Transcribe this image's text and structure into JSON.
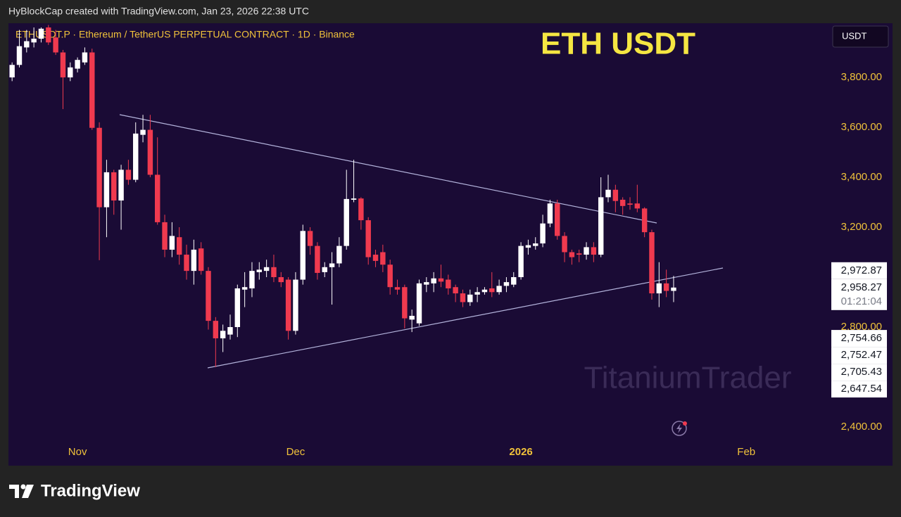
{
  "header": "HyBlockCap created with TradingView.com, Jan 23, 2026 22:38 UTC",
  "watermark": "TitaniumTrader",
  "currency_button": "USDT",
  "footer_brand": "TradingView",
  "chart_data": {
    "type": "candlestick",
    "title": "ETH USDT",
    "subtitle": "ETHUSDT.P · Ethereum / TetherUS PERPETUAL CONTRACT · 1D · Binance",
    "up_color": "#ffffff",
    "down_color": "#f03a4f",
    "categories": [
      null,
      null,
      null,
      null,
      null,
      null,
      null,
      null,
      null,
      "Nov",
      null,
      null,
      null,
      null,
      null,
      null,
      null,
      null,
      null,
      null,
      null,
      null,
      null,
      null,
      null,
      null,
      null,
      null,
      null,
      null,
      null,
      null,
      null,
      null,
      null,
      null,
      null,
      null,
      null,
      "Dec",
      null,
      null,
      null,
      null,
      null,
      null,
      null,
      null,
      null,
      null,
      null,
      null,
      null,
      null,
      null,
      null,
      null,
      null,
      null,
      null,
      null,
      null,
      null,
      null,
      null,
      null,
      null,
      null,
      null,
      null,
      "2026",
      null,
      null,
      null,
      null,
      null,
      null,
      null,
      null,
      null,
      null,
      null,
      null,
      null,
      null,
      null,
      null,
      null,
      null,
      null,
      null,
      null,
      null,
      null,
      null,
      null,
      null,
      null,
      null,
      null,
      null,
      "Feb",
      null,
      null,
      null,
      null,
      null,
      null,
      null,
      null,
      null,
      null,
      null
    ],
    "open": [
      3800,
      3850,
      3920,
      3940,
      3955,
      4000,
      3960,
      3900,
      3800,
      3835,
      3860,
      3900,
      3598,
      3280,
      3420,
      3307,
      3430,
      3390,
      3570,
      3590,
      3410,
      3220,
      3110,
      3160,
      3090,
      3025,
      3115,
      3025,
      2825,
      2755,
      2770,
      2800,
      2950,
      2955,
      3020,
      3025,
      3040,
      3000,
      2990,
      2785,
      2990,
      3185,
      3125,
      3020,
      3040,
      3055,
      3125,
      3310,
      3315,
      3228,
      3090,
      3100,
      3050,
      2960,
      2960,
      2830,
      2815,
      2970,
      2975,
      2995,
      2990,
      2960,
      2935,
      2900,
      2930,
      2940,
      2955,
      2940,
      2965,
      2970,
      3000,
      3118,
      3125,
      3135,
      3215,
      3295,
      3165,
      3100,
      3095,
      3090,
      3120,
      3090,
      3320,
      3350,
      3310,
      3295,
      3295,
      3275,
      3180,
      2935,
      2975,
      2945,
      null,
      null,
      null,
      null,
      null,
      null,
      null,
      null,
      null,
      null,
      null,
      null,
      null,
      null,
      null,
      null,
      null,
      null,
      null,
      null,
      null
    ],
    "high": [
      3860,
      3990,
      3990,
      4000,
      4000,
      4010,
      3990,
      3910,
      3860,
      3880,
      3920,
      3915,
      3620,
      3470,
      3430,
      3450,
      3470,
      3620,
      3650,
      3650,
      3560,
      3250,
      3220,
      3200,
      3130,
      3150,
      3140,
      3040,
      2840,
      2810,
      2850,
      2970,
      3020,
      3060,
      3060,
      3070,
      3090,
      3020,
      3000,
      3020,
      3210,
      3200,
      3140,
      3060,
      3100,
      3160,
      3430,
      3470,
      3320,
      3240,
      3110,
      3130,
      3070,
      2990,
      2970,
      2870,
      2990,
      3000,
      3020,
      3050,
      3010,
      2970,
      2950,
      2950,
      2960,
      2960,
      3020,
      2990,
      3000,
      3020,
      3140,
      3150,
      3160,
      3250,
      3310,
      3310,
      3180,
      3110,
      3110,
      3140,
      3140,
      3400,
      3410,
      3370,
      3320,
      3320,
      3370,
      3280,
      3190,
      3060,
      3030,
      3005,
      null,
      null,
      null,
      null,
      null,
      null,
      null,
      null,
      null,
      null,
      null,
      null,
      null,
      null,
      null,
      null,
      null,
      null,
      null,
      null,
      null
    ],
    "low": [
      3785,
      3840,
      3900,
      3920,
      3940,
      3930,
      3890,
      3673,
      3785,
      3820,
      3850,
      3590,
      3068,
      3160,
      3250,
      3190,
      3370,
      3380,
      3540,
      3400,
      3210,
      3080,
      3080,
      3050,
      2990,
      2970,
      3010,
      2790,
      2640,
      2700,
      2750,
      2760,
      2880,
      2920,
      2990,
      3000,
      2980,
      2960,
      2750,
      2770,
      2970,
      3090,
      2990,
      3000,
      2890,
      3040,
      3110,
      3300,
      3190,
      3050,
      3040,
      3020,
      2930,
      2930,
      2795,
      2780,
      2805,
      2940,
      2940,
      2960,
      2930,
      2900,
      2880,
      2885,
      2900,
      2930,
      2920,
      2930,
      2940,
      2960,
      2990,
      3090,
      3110,
      3120,
      3200,
      3150,
      3060,
      3050,
      3060,
      3070,
      3060,
      3080,
      3300,
      3260,
      3250,
      3270,
      3260,
      3160,
      2910,
      2880,
      2920,
      2900,
      null,
      null,
      null,
      null,
      null,
      null,
      null,
      null,
      null,
      null,
      null,
      null,
      null,
      null,
      null,
      null,
      null,
      null,
      null,
      null,
      null
    ],
    "close": [
      3850,
      3925,
      3945,
      3955,
      3995,
      3940,
      3900,
      3800,
      3840,
      3870,
      3900,
      3598,
      3280,
      3420,
      3307,
      3430,
      3390,
      3575,
      3590,
      3410,
      3220,
      3110,
      3165,
      3090,
      3025,
      3110,
      3025,
      2825,
      2755,
      2785,
      2800,
      2955,
      2960,
      3025,
      3030,
      3040,
      3000,
      2980,
      2785,
      2990,
      3185,
      3125,
      3017,
      3040,
      3055,
      3125,
      3313,
      3315,
      3228,
      3080,
      3065,
      3050,
      2960,
      2950,
      2835,
      2845,
      2975,
      2980,
      2995,
      2982,
      2955,
      2935,
      2900,
      2930,
      2940,
      2950,
      2940,
      2965,
      2980,
      3000,
      3125,
      3128,
      3135,
      3215,
      3295,
      3165,
      3100,
      3080,
      3090,
      3120,
      3090,
      3320,
      3350,
      3305,
      3285,
      3290,
      3275,
      3180,
      2935,
      2975,
      2945,
      2958.27,
      null,
      null,
      null,
      null,
      null,
      null,
      null,
      null,
      null,
      null,
      null,
      null,
      null,
      null,
      null,
      null,
      null,
      null,
      null,
      null,
      null
    ],
    "ylim": [
      2245,
      4017
    ],
    "yticks": [
      {
        "value": 2400,
        "label": "2,400.00"
      },
      {
        "value": 2800,
        "label": "2,800.00"
      },
      {
        "value": 3200,
        "label": "3,200.00"
      },
      {
        "value": 3400,
        "label": "3,400.00"
      },
      {
        "value": 3600,
        "label": "3,600.00"
      },
      {
        "value": 3800,
        "label": "3,800.00"
      }
    ],
    "current_price": {
      "value": 2958.27,
      "label": "2,958.27"
    },
    "countdown": "01:21:04",
    "price_labels": [
      {
        "value": 2972.87,
        "label": "2,972.87"
      },
      {
        "value": 2754.66,
        "label": "2,754.66"
      },
      {
        "value": 2752.47,
        "label": "2,752.47"
      },
      {
        "value": 2705.43,
        "label": "2,705.43"
      },
      {
        "value": 2647.54,
        "label": "2,647.54"
      }
    ]
  }
}
